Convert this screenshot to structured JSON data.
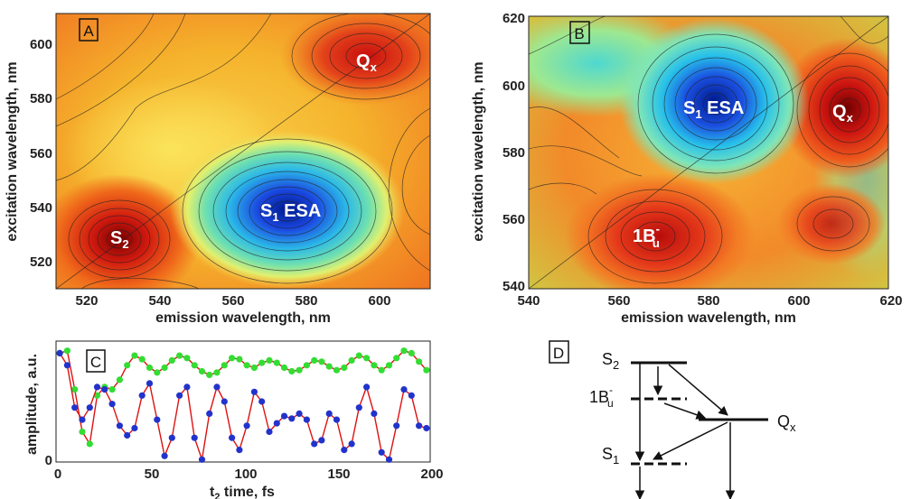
{
  "panels": {
    "A": {
      "letter": "A",
      "xlabel": "emission wavelength, nm",
      "ylabel": "excitation wavelength, nm",
      "xticks": [
        "520",
        "540",
        "560",
        "580",
        "600"
      ],
      "yticks": [
        "520",
        "540",
        "560",
        "580",
        "600"
      ],
      "peaks": [
        {
          "main": "S",
          "sub": "2"
        },
        {
          "main": "S",
          "sub": "1",
          "rest": " ESA"
        },
        {
          "main": "Q",
          "sub": "x"
        }
      ]
    },
    "B": {
      "letter": "B",
      "xlabel": "emission wavelength, nm",
      "ylabel": "excitation wavelength, nm",
      "xticks": [
        "540",
        "560",
        "580",
        "600",
        "620"
      ],
      "yticks": [
        "540",
        "560",
        "580",
        "600",
        "620"
      ],
      "peaks": [
        {
          "main": "S",
          "sub": "1",
          "rest": " ESA"
        },
        {
          "main": "Q",
          "sub": "x"
        },
        {
          "main": "1B",
          "sub": "u",
          "sup": "-"
        }
      ]
    },
    "C": {
      "letter": "C",
      "xlabel_sub": "2",
      "xlabel_pre": "t",
      "xlabel_post": " time, fs",
      "ylabel": "amplitude, a.u.",
      "xticks": [
        "0",
        "50",
        "100",
        "150",
        "200"
      ],
      "yticks": [
        "0"
      ]
    },
    "D": {
      "letter": "D",
      "levels": [
        {
          "main": "S",
          "sub": "2"
        },
        {
          "main": "1B",
          "sub": "u",
          "sup": "-"
        },
        {
          "main": "Q",
          "sub": "x"
        },
        {
          "main": "S",
          "sub": "1"
        }
      ]
    }
  },
  "colors": {
    "green": "#33dd33",
    "blue": "#2233cc",
    "fit": "#dd1111"
  },
  "chart_data": [
    {
      "type": "heatmap",
      "xlabel": "emission wavelength, nm",
      "ylabel": "excitation wavelength, nm",
      "xlim": [
        510,
        610
      ],
      "ylim": [
        510,
        610
      ],
      "xticks": [
        520,
        540,
        560,
        580,
        600
      ],
      "yticks": [
        520,
        540,
        560,
        580,
        600
      ],
      "features": [
        {
          "label": "S2",
          "x": 526,
          "y": 526,
          "sign": "positive"
        },
        {
          "label": "S1 ESA",
          "x": 568,
          "y": 536,
          "sign": "negative"
        },
        {
          "label": "Qx",
          "x": 597,
          "y": 596,
          "sign": "positive"
        }
      ],
      "diagonal": true
    },
    {
      "type": "heatmap",
      "xlabel": "emission wavelength, nm",
      "ylabel": "excitation wavelength, nm",
      "xlim": [
        540,
        620
      ],
      "ylim": [
        540,
        620
      ],
      "xticks": [
        540,
        560,
        580,
        600,
        620
      ],
      "yticks": [
        540,
        560,
        580,
        600,
        620
      ],
      "features": [
        {
          "label": "S1 ESA",
          "x": 581,
          "y": 593,
          "sign": "negative"
        },
        {
          "label": "Qx",
          "x": 605,
          "y": 591,
          "sign": "positive"
        },
        {
          "label": "1Bu-",
          "x": 569,
          "y": 556,
          "sign": "positive"
        }
      ],
      "diagonal": true
    },
    {
      "type": "line",
      "xlabel": "t2 time, fs",
      "ylabel": "amplitude, a.u.",
      "xlim": [
        0,
        200
      ],
      "ylim": [
        0,
        1
      ],
      "series": [
        {
          "x": [
            2,
            6,
            10,
            14,
            18,
            22,
            26,
            30,
            34,
            38,
            42,
            46,
            50,
            54,
            58,
            62,
            66,
            70,
            74,
            78,
            82,
            86,
            90,
            94,
            98,
            102,
            106,
            110,
            114,
            118,
            122,
            126,
            130,
            134,
            138,
            142,
            146,
            150,
            154,
            158,
            162,
            166,
            170,
            174,
            178,
            182,
            186,
            190,
            194,
            198
          ],
          "values": [
            0.9,
            0.92,
            0.6,
            0.25,
            0.15,
            0.55,
            0.62,
            0.6,
            0.68,
            0.8,
            0.88,
            0.85,
            0.78,
            0.74,
            0.78,
            0.84,
            0.88,
            0.86,
            0.8,
            0.75,
            0.72,
            0.74,
            0.8,
            0.86,
            0.85,
            0.8,
            0.78,
            0.82,
            0.84,
            0.82,
            0.78,
            0.75,
            0.76,
            0.8,
            0.84,
            0.83,
            0.79,
            0.76,
            0.78,
            0.84,
            0.88,
            0.86,
            0.8,
            0.76,
            0.8,
            0.86,
            0.92,
            0.9,
            0.83,
            0.76
          ]
        },
        {
          "x": [
            2,
            6,
            10,
            14,
            18,
            22,
            26,
            30,
            34,
            38,
            42,
            46,
            50,
            54,
            58,
            62,
            66,
            70,
            74,
            78,
            82,
            86,
            90,
            94,
            98,
            102,
            106,
            110,
            114,
            118,
            122,
            126,
            130,
            134,
            138,
            142,
            146,
            150,
            154,
            158,
            162,
            166,
            170,
            174,
            178,
            182,
            186,
            190,
            194,
            198
          ],
          "values": [
            0.9,
            0.8,
            0.45,
            0.35,
            0.45,
            0.62,
            0.6,
            0.48,
            0.3,
            0.22,
            0.28,
            0.55,
            0.65,
            0.35,
            0.05,
            0.2,
            0.55,
            0.62,
            0.2,
            0.02,
            0.4,
            0.62,
            0.5,
            0.2,
            0.1,
            0.3,
            0.58,
            0.5,
            0.25,
            0.32,
            0.38,
            0.36,
            0.4,
            0.35,
            0.15,
            0.18,
            0.4,
            0.35,
            0.1,
            0.15,
            0.45,
            0.62,
            0.4,
            0.08,
            0.02,
            0.3,
            0.6,
            0.55,
            0.3,
            0.28
          ]
        }
      ]
    }
  ]
}
